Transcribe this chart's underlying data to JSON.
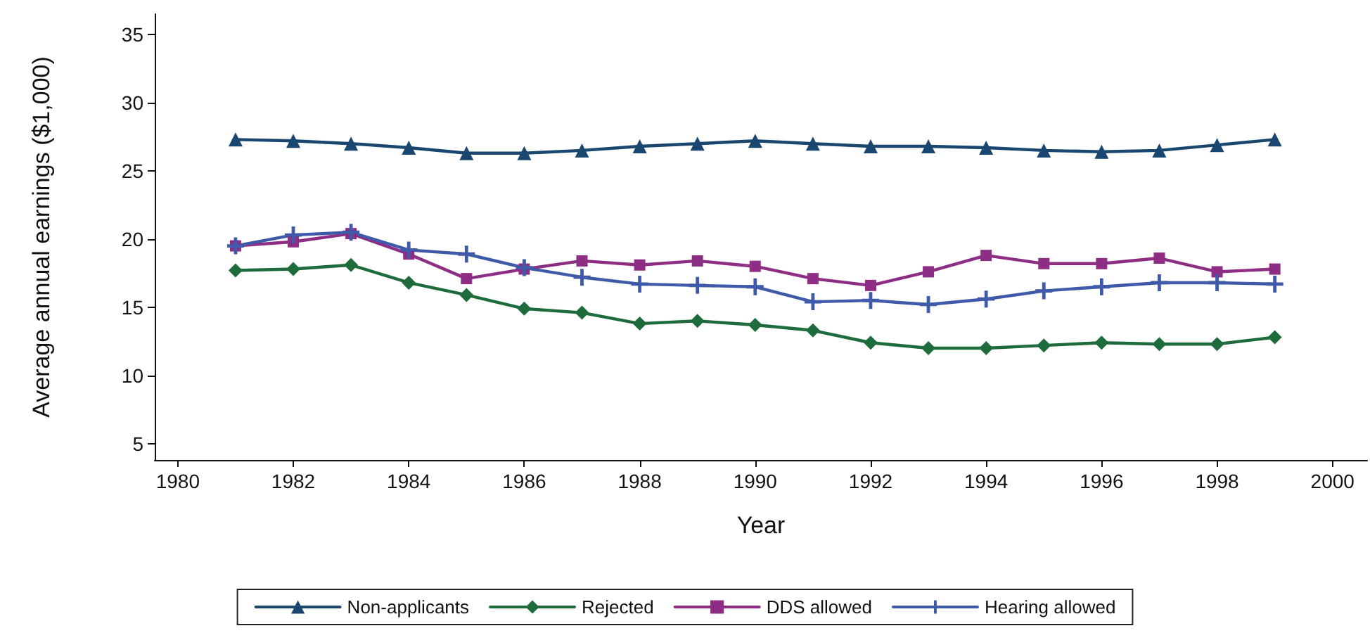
{
  "chart_data": {
    "type": "line",
    "xlabel": "Year",
    "ylabel": "Average annual earnings ($1,000)",
    "x": [
      1981,
      1982,
      1983,
      1984,
      1985,
      1986,
      1987,
      1988,
      1989,
      1990,
      1991,
      1992,
      1993,
      1994,
      1995,
      1996,
      1997,
      1998,
      1999
    ],
    "xlim": [
      1979.6,
      2000.6
    ],
    "xticks": [
      1980,
      1982,
      1984,
      1986,
      1988,
      1990,
      1992,
      1994,
      1996,
      1998,
      2000
    ],
    "ylim": [
      3.8,
      36.5
    ],
    "yticks": [
      5,
      10,
      15,
      20,
      25,
      30,
      35
    ],
    "grid": false,
    "legend": "bottom",
    "line_style": "solid",
    "series": [
      {
        "name": "Non-applicants",
        "color": "#1a476f",
        "marker": "triangle",
        "values": [
          27.3,
          27.2,
          27.0,
          26.7,
          26.3,
          26.3,
          26.5,
          26.8,
          27.0,
          27.2,
          27.0,
          26.8,
          26.8,
          26.7,
          26.5,
          26.4,
          26.5,
          26.9,
          27.3
        ]
      },
      {
        "name": "Rejected",
        "color": "#1e6b3c",
        "marker": "diamond",
        "values": [
          17.7,
          17.8,
          18.1,
          16.8,
          15.9,
          14.9,
          14.6,
          13.8,
          14.0,
          13.7,
          13.3,
          12.4,
          12.0,
          12.0,
          12.2,
          12.4,
          12.3,
          12.3,
          12.8
        ]
      },
      {
        "name": "DDS allowed",
        "color": "#8e2d84",
        "marker": "square",
        "values": [
          19.5,
          19.8,
          20.4,
          18.9,
          17.1,
          17.8,
          18.4,
          18.1,
          18.4,
          18.0,
          17.1,
          16.6,
          17.6,
          18.8,
          18.2,
          18.2,
          18.6,
          17.6,
          17.8
        ]
      },
      {
        "name": "Hearing allowed",
        "color": "#3f5aa8",
        "marker": "cross",
        "values": [
          19.5,
          20.3,
          20.5,
          19.2,
          18.9,
          17.9,
          17.2,
          16.7,
          16.6,
          16.5,
          15.4,
          15.5,
          15.2,
          15.6,
          16.2,
          16.5,
          16.8,
          16.8,
          16.7
        ]
      }
    ]
  }
}
